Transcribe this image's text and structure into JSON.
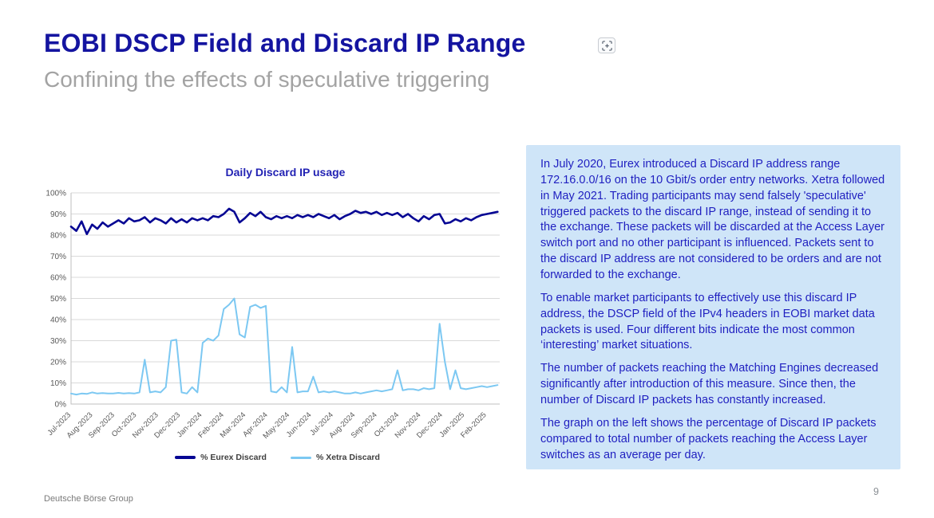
{
  "slide": {
    "title": "EOBI DSCP Field and Discard IP Range",
    "subtitle": "Confining the effects of speculative triggering",
    "title_icon": "focus-expand-icon",
    "footer_brand": "Deutsche Börse Group",
    "page_number": "9"
  },
  "colors": {
    "title_blue": "#1414A0",
    "subtitle_gray": "#A3A3A3",
    "info_box_background": "#CFE5F8",
    "info_box_text": "#1F1FC0",
    "eurex_line": "#050593",
    "xetra_line": "#7CC8F2",
    "gridline": "#D9D9D9",
    "axis_line": "#BFBFBF",
    "tick_label": "#595959"
  },
  "info_box": {
    "paragraphs": [
      "In July 2020, Eurex introduced a Discard IP address range 172.16.0.0/16 on the 10 Gbit/s order entry networks. Xetra followed in May 2021. Trading participants may send falsely 'speculative' triggered packets to the discard IP range, instead of sending it to the exchange. These packets will be discarded at the Access Layer switch port and no other participant is influenced. Packets sent to the discard IP address are not considered to be orders and are not forwarded to the exchange.",
      "To enable market participants to effectively use this discard IP address, the DSCP field of the IPv4 headers in EOBI market data packets is used. Four different bits indicate the most common ‘interesting’ market situations.",
      "The number of packets reaching the Matching Engines decreased significantly after introduction of this measure. Since then, the number of Discard IP packets has constantly increased.",
      "The graph on the left shows the percentage of Discard IP packets compared to total number of packets reaching the Access Layer switches as an average per day."
    ]
  },
  "chart_data": {
    "type": "line",
    "title": "Daily Discard IP usage",
    "xlabel": "",
    "ylabel": "",
    "ylim": [
      0,
      100
    ],
    "y_ticks": [
      0,
      10,
      20,
      30,
      40,
      50,
      60,
      70,
      80,
      90,
      100
    ],
    "y_tick_suffix": "%",
    "grid": "horizontal",
    "legend_position": "bottom",
    "categories": [
      "Jul-2023",
      "Aug-2023",
      "Sep-2023",
      "Oct-2023",
      "Nov-2023",
      "Dec-2023",
      "Jan-2024",
      "Feb-2024",
      "Mar-2024",
      "Apr-2024",
      "May-2024",
      "Jun-2024",
      "Jul-2024",
      "Aug-2024",
      "Sep-2024",
      "Oct-2024",
      "Nov-2024",
      "Dec-2024",
      "Jan-2025",
      "Feb-2025"
    ],
    "series": [
      {
        "name": "% Eurex Discard",
        "color": "#050593",
        "stroke_width": 2.6,
        "values": [
          84,
          82,
          86.5,
          80.5,
          85,
          83,
          86,
          84,
          85.5,
          87,
          85.5,
          88,
          86.5,
          87,
          88.5,
          86,
          88,
          87,
          85.5,
          88,
          86,
          87.5,
          86,
          88,
          87,
          88,
          87,
          89,
          88.5,
          90,
          92.5,
          91,
          86,
          88,
          90.5,
          89,
          91,
          88.5,
          87.5,
          89,
          88,
          89,
          88,
          89.5,
          88.5,
          89.5,
          88.5,
          90,
          89,
          88,
          89.5,
          87.5,
          89,
          90,
          91.5,
          90.5,
          91,
          90,
          91,
          89.5,
          90.5,
          89.5,
          90.5,
          88.5,
          90,
          88,
          86.5,
          89,
          87.5,
          89.5,
          90,
          85.5,
          86,
          87.5,
          86.5,
          88,
          87,
          88.5,
          89.5,
          90,
          90.5,
          91
        ]
      },
      {
        "name": "% Xetra Discard",
        "color": "#7CC8F2",
        "stroke_width": 2.0,
        "values": [
          5,
          4.5,
          5,
          4.8,
          5.5,
          5,
          5.2,
          5,
          5,
          5.3,
          5,
          5.2,
          5,
          5.5,
          21,
          5.5,
          6,
          5.5,
          8,
          30,
          30.5,
          5.5,
          5,
          8,
          5.5,
          29,
          31,
          30,
          32.5,
          45,
          47,
          50,
          33,
          31.5,
          46,
          47,
          45.5,
          46.5,
          6,
          5.5,
          8,
          5.5,
          27,
          5.5,
          6,
          6,
          13,
          5.5,
          6,
          5.5,
          6,
          5.5,
          5,
          5,
          5.5,
          5,
          5.5,
          6,
          6.5,
          6,
          6.5,
          7,
          16,
          6.5,
          7,
          7,
          6.5,
          7.5,
          7,
          7.5,
          38,
          20,
          7,
          16,
          7.5,
          7,
          7.5,
          8,
          8.5,
          8,
          8.5,
          9
        ]
      }
    ]
  }
}
